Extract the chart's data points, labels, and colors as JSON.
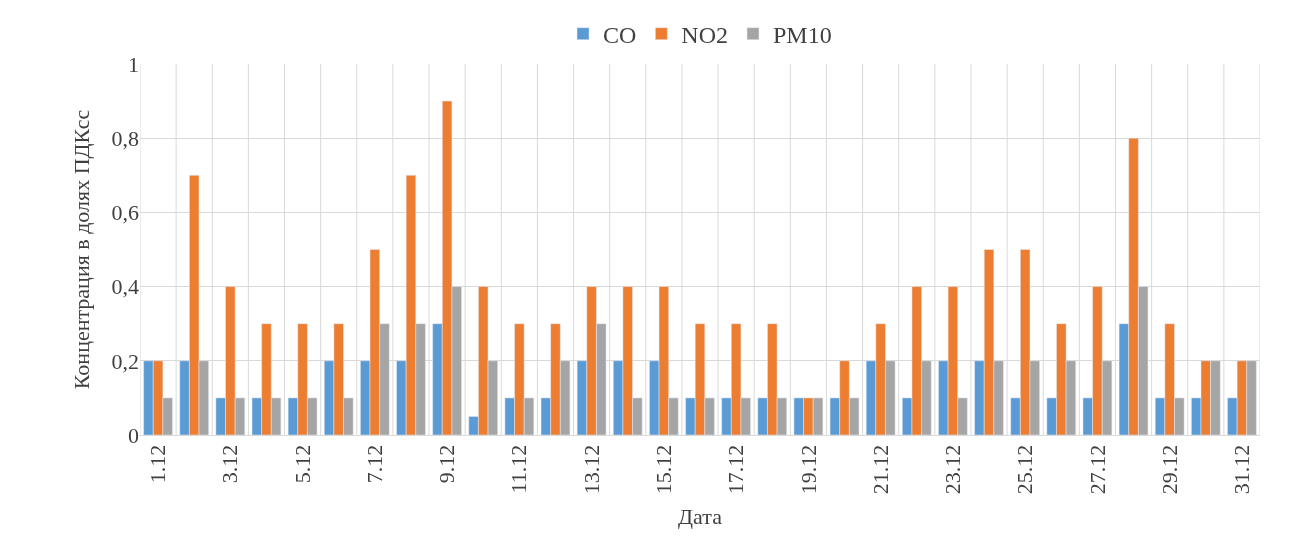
{
  "chart_data": {
    "type": "bar",
    "xlabel": "Дата",
    "ylabel": "Концентрация в долях ПДКсс",
    "categories": [
      "1.12",
      null,
      "3.12",
      null,
      "5.12",
      null,
      "7.12",
      null,
      "9.12",
      null,
      "11.12",
      null,
      "13.12",
      null,
      "15.12",
      null,
      "17.12",
      null,
      "19.12",
      null,
      "21.12",
      null,
      "23.12",
      null,
      "25.12",
      null,
      "27.12",
      null,
      "29.12",
      null,
      "31.12"
    ],
    "series": [
      {
        "name": "CO",
        "color": "#5b9bd5",
        "values": [
          0.2,
          0.2,
          0.1,
          0.1,
          0.1,
          0.2,
          0.2,
          0.2,
          0.3,
          0.05,
          0.1,
          0.1,
          0.2,
          0.2,
          0.2,
          0.1,
          0.1,
          0.1,
          0.1,
          0.1,
          0.2,
          0.1,
          0.2,
          0.2,
          0.1,
          0.1,
          0.1,
          0.3,
          0.1,
          0.1,
          0.1
        ]
      },
      {
        "name": "NO2",
        "color": "#ed7d31",
        "values": [
          0.2,
          0.7,
          0.4,
          0.3,
          0.3,
          0.3,
          0.5,
          0.7,
          0.9,
          0.4,
          0.3,
          0.3,
          0.4,
          0.4,
          0.4,
          0.3,
          0.3,
          0.3,
          0.1,
          0.2,
          0.3,
          0.4,
          0.4,
          0.5,
          0.5,
          0.3,
          0.4,
          0.8,
          0.3,
          0.2,
          0.2
        ]
      },
      {
        "name": "PM10",
        "color": "#a5a5a5",
        "values": [
          0.1,
          0.2,
          0.1,
          0.1,
          0.1,
          0.1,
          0.3,
          0.3,
          0.4,
          0.2,
          0.1,
          0.2,
          0.3,
          0.1,
          0.1,
          0.1,
          0.1,
          0.1,
          0.1,
          0.1,
          0.2,
          0.2,
          0.1,
          0.2,
          0.2,
          0.2,
          0.2,
          0.4,
          0.1,
          0.2,
          0.2
        ]
      }
    ],
    "ylim": [
      0,
      1
    ],
    "yticks": [
      0,
      {
        "value": 0.2,
        "label": "0,2"
      },
      {
        "value": 0.4,
        "label": "0,4"
      },
      {
        "value": 0.6,
        "label": "0,6"
      },
      {
        "value": 0.8,
        "label": "0,8"
      },
      1
    ],
    "grid": true,
    "legend": "top"
  }
}
